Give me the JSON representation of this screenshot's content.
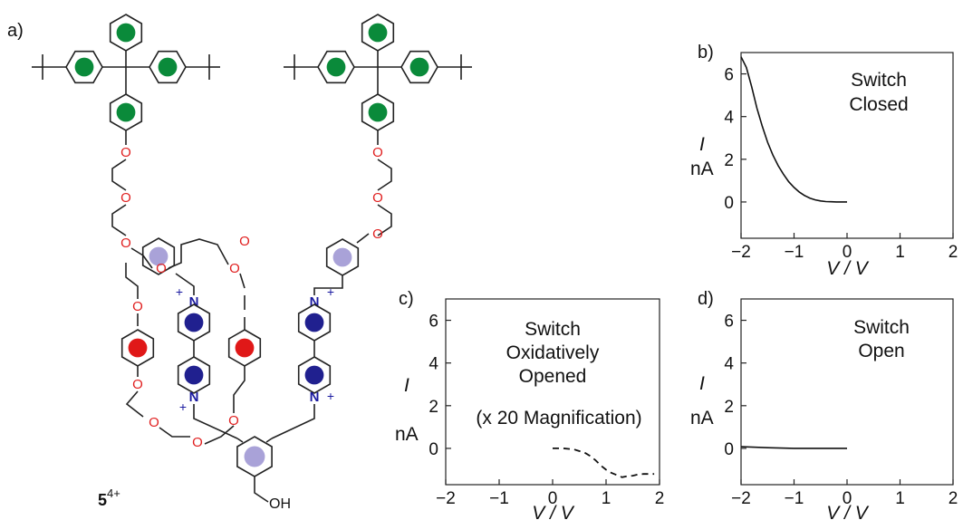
{
  "figure": {
    "panels": [
      "a)",
      "b)",
      "c)",
      "d)"
    ],
    "molecule": {
      "compound_label": "5",
      "compound_charge": "4+",
      "oxygen_label": "O",
      "nitrogen_label": "N",
      "plus_label": "+",
      "hydroxyl_label": "OH"
    },
    "colors": {
      "green": "#0a8a3a",
      "red": "#e01818",
      "navy": "#20208f",
      "lavender": "#a9a2d8",
      "oxygen_red": "#e02020",
      "nitrogen_blue": "#1a1aa0"
    }
  },
  "chart_data": [
    {
      "panel": "b)",
      "type": "line",
      "annotation": [
        "Switch",
        "Closed"
      ],
      "ylabel_top": "I",
      "ylabel_bottom": "nA",
      "xlabel": "V / V",
      "xlim": [
        -2,
        2
      ],
      "ylim": [
        -1.7,
        7
      ],
      "xticks": [
        "−2",
        "−1",
        "0",
        "1",
        "2"
      ],
      "yticks": [
        "0",
        "2",
        "4",
        "6"
      ],
      "series": [
        {
          "style": "solid",
          "x": [
            -2.0,
            -1.9,
            -1.8,
            -1.7,
            -1.6,
            -1.5,
            -1.4,
            -1.3,
            -1.2,
            -1.1,
            -1.0,
            -0.9,
            -0.8,
            -0.7,
            -0.6,
            -0.5,
            -0.4,
            -0.3,
            -0.2,
            -0.1,
            0.0
          ],
          "y": [
            6.8,
            6.3,
            5.4,
            4.4,
            3.55,
            2.8,
            2.2,
            1.7,
            1.3,
            0.95,
            0.68,
            0.46,
            0.3,
            0.18,
            0.1,
            0.05,
            0.02,
            0.01,
            0.0,
            0.0,
            0.0
          ]
        }
      ]
    },
    {
      "panel": "c)",
      "type": "line",
      "annotation": [
        "Switch",
        "Oxidatively",
        "Opened",
        "(x 20 Magnification)"
      ],
      "ylabel_top": "I",
      "ylabel_bottom": "nA",
      "xlabel": "V / V",
      "xlim": [
        -2,
        2
      ],
      "ylim": [
        -1.7,
        7
      ],
      "xticks": [
        "−2",
        "−1",
        "0",
        "1",
        "2"
      ],
      "yticks": [
        "0",
        "2",
        "4",
        "6"
      ],
      "series": [
        {
          "style": "dashed",
          "x": [
            0.0,
            0.2,
            0.4,
            0.6,
            0.7,
            0.8,
            0.9,
            1.0,
            1.1,
            1.2,
            1.3,
            1.4,
            1.5,
            1.6,
            1.7,
            1.8,
            1.9
          ],
          "y": [
            0.0,
            0.0,
            -0.05,
            -0.2,
            -0.35,
            -0.55,
            -0.8,
            -1.0,
            -1.15,
            -1.25,
            -1.35,
            -1.3,
            -1.28,
            -1.22,
            -1.2,
            -1.2,
            -1.2
          ]
        }
      ]
    },
    {
      "panel": "d)",
      "type": "line",
      "annotation": [
        "Switch",
        "Open"
      ],
      "ylabel_top": "I",
      "ylabel_bottom": "nA",
      "xlabel": "V / V",
      "xlim": [
        -2,
        2
      ],
      "ylim": [
        -1.7,
        7
      ],
      "xticks": [
        "−2",
        "−1",
        "0",
        "1",
        "2"
      ],
      "yticks": [
        "0",
        "2",
        "4",
        "6"
      ],
      "series": [
        {
          "style": "solid",
          "x": [
            -2.0,
            -1.5,
            -1.0,
            -0.5,
            0.0
          ],
          "y": [
            0.08,
            0.03,
            0.0,
            0.0,
            0.0
          ]
        }
      ]
    }
  ]
}
